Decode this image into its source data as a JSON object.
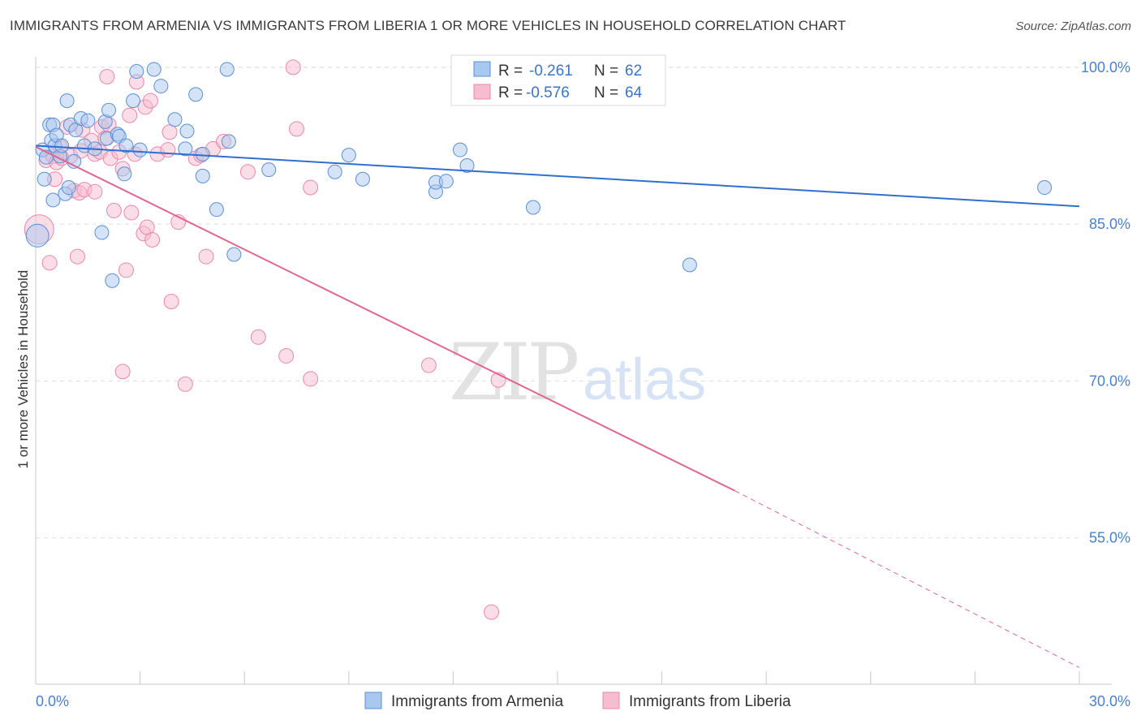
{
  "header": {
    "title": "IMMIGRANTS FROM ARMENIA VS IMMIGRANTS FROM LIBERIA 1 OR MORE VEHICLES IN HOUSEHOLD CORRELATION CHART",
    "source": "Source: ZipAtlas.com"
  },
  "watermark": {
    "zip": "ZIP",
    "atlas": "atlas"
  },
  "stats_box": {
    "rows": [
      {
        "r_label": "R =",
        "r_value": "-0.261",
        "n_label": "N =",
        "n_value": "62"
      },
      {
        "r_label": "R =",
        "r_value": "-0.576",
        "n_label": "N =",
        "n_value": "64"
      }
    ]
  },
  "legend": {
    "items": [
      {
        "label": "Immigrants from Armenia"
      },
      {
        "label": "Immigrants from Liberia"
      }
    ]
  },
  "colors": {
    "armenia_fill": "#a9c8f0",
    "armenia_stroke": "#5b8fd6",
    "armenia_line": "#2f6fcf",
    "liberia_fill": "#f6bcd0",
    "liberia_stroke": "#e889a8",
    "liberia_line": "#e06690",
    "tick_label": "#4a7fd0",
    "grid": "#dddddd"
  },
  "chart_data": {
    "type": "scatter",
    "title": "IMMIGRANTS FROM ARMENIA VS IMMIGRANTS FROM LIBERIA 1 OR MORE VEHICLES IN HOUSEHOLD CORRELATION CHART",
    "xlabel": "",
    "ylabel": "1 or more Vehicles in Household",
    "xlim": [
      0,
      30
    ],
    "ylim": [
      41,
      101
    ],
    "x_tick_labels": [
      "0.0%",
      "30.0%"
    ],
    "y_ticks": [
      55,
      70,
      85,
      100
    ],
    "y_tick_labels": [
      "55.0%",
      "70.0%",
      "85.0%",
      "100.0%"
    ],
    "grid": "horizontal dashed",
    "legend_position": "bottom-center",
    "series": [
      {
        "name": "Immigrants from Armenia",
        "R": -0.261,
        "N": 62,
        "trend": {
          "x": [
            0,
            30
          ],
          "y": [
            92.5,
            86.7
          ]
        },
        "points": [
          [
            0.05,
            83.9
          ],
          [
            0.2,
            92.1
          ],
          [
            0.25,
            89.3
          ],
          [
            0.3,
            91.4
          ],
          [
            0.4,
            94.5
          ],
          [
            0.45,
            93.0
          ],
          [
            0.5,
            87.3
          ],
          [
            0.5,
            94.5
          ],
          [
            0.55,
            92.5
          ],
          [
            0.6,
            93.5
          ],
          [
            0.7,
            91.5
          ],
          [
            0.75,
            92.5
          ],
          [
            0.85,
            87.9
          ],
          [
            0.9,
            96.8
          ],
          [
            0.95,
            88.5
          ],
          [
            1.0,
            94.5
          ],
          [
            1.1,
            91.0
          ],
          [
            1.15,
            94.0
          ],
          [
            1.3,
            95.1
          ],
          [
            1.4,
            92.5
          ],
          [
            1.5,
            94.9
          ],
          [
            1.7,
            92.2
          ],
          [
            1.9,
            84.2
          ],
          [
            2.0,
            94.8
          ],
          [
            2.05,
            93.2
          ],
          [
            2.1,
            95.9
          ],
          [
            2.2,
            79.6
          ],
          [
            2.35,
            93.6
          ],
          [
            2.4,
            93.4
          ],
          [
            2.55,
            89.8
          ],
          [
            2.6,
            92.5
          ],
          [
            2.8,
            96.8
          ],
          [
            2.9,
            99.6
          ],
          [
            3.0,
            92.1
          ],
          [
            3.4,
            99.8
          ],
          [
            3.6,
            98.2
          ],
          [
            4.0,
            95.0
          ],
          [
            4.3,
            92.2
          ],
          [
            4.35,
            93.9
          ],
          [
            4.6,
            97.4
          ],
          [
            4.8,
            91.7
          ],
          [
            4.8,
            89.6
          ],
          [
            5.2,
            86.4
          ],
          [
            5.5,
            99.8
          ],
          [
            5.55,
            92.9
          ],
          [
            5.7,
            82.1
          ],
          [
            6.7,
            90.2
          ],
          [
            8.6,
            90.0
          ],
          [
            9.0,
            91.6
          ],
          [
            9.4,
            89.3
          ],
          [
            11.5,
            88.1
          ],
          [
            11.5,
            89.0
          ],
          [
            11.8,
            89.1
          ],
          [
            12.2,
            92.1
          ],
          [
            12.4,
            90.6
          ],
          [
            14.3,
            86.6
          ],
          [
            18.8,
            81.1
          ],
          [
            29.0,
            88.5
          ]
        ]
      },
      {
        "name": "Immigrants from Liberia",
        "R": -0.576,
        "N": 64,
        "trend": {
          "x": [
            0,
            20.1
          ],
          "y": [
            92.4,
            59.5
          ],
          "dashed_extension": {
            "x": [
              20.1,
              30
            ],
            "y": [
              59.5,
              42.6
            ]
          }
        },
        "points": [
          [
            0.1,
            84.5
          ],
          [
            0.3,
            91.1
          ],
          [
            0.4,
            81.3
          ],
          [
            0.5,
            91.5
          ],
          [
            0.55,
            89.3
          ],
          [
            0.6,
            90.9
          ],
          [
            0.7,
            92.4
          ],
          [
            0.75,
            91.3
          ],
          [
            0.9,
            94.3
          ],
          [
            1.0,
            91.5
          ],
          [
            1.1,
            88.2
          ],
          [
            1.2,
            81.9
          ],
          [
            1.25,
            88.0
          ],
          [
            1.3,
            92.0
          ],
          [
            1.35,
            94.0
          ],
          [
            1.4,
            88.3
          ],
          [
            1.6,
            93.0
          ],
          [
            1.7,
            88.1
          ],
          [
            1.7,
            91.7
          ],
          [
            1.85,
            91.9
          ],
          [
            1.9,
            94.3
          ],
          [
            2.0,
            93.2
          ],
          [
            2.05,
            99.1
          ],
          [
            2.1,
            94.5
          ],
          [
            2.15,
            91.3
          ],
          [
            2.25,
            86.3
          ],
          [
            2.4,
            91.9
          ],
          [
            2.5,
            90.3
          ],
          [
            2.5,
            70.9
          ],
          [
            2.6,
            80.6
          ],
          [
            2.7,
            95.4
          ],
          [
            2.75,
            86.1
          ],
          [
            2.85,
            91.7
          ],
          [
            2.9,
            98.6
          ],
          [
            3.1,
            84.1
          ],
          [
            3.15,
            96.2
          ],
          [
            3.2,
            84.7
          ],
          [
            3.3,
            96.8
          ],
          [
            3.35,
            83.5
          ],
          [
            3.5,
            91.7
          ],
          [
            3.8,
            92.1
          ],
          [
            3.85,
            93.8
          ],
          [
            3.9,
            77.6
          ],
          [
            4.1,
            85.2
          ],
          [
            4.3,
            69.7
          ],
          [
            4.6,
            91.3
          ],
          [
            4.75,
            91.6
          ],
          [
            4.9,
            81.9
          ],
          [
            5.1,
            92.2
          ],
          [
            5.4,
            92.9
          ],
          [
            6.1,
            90.0
          ],
          [
            6.4,
            74.2
          ],
          [
            7.2,
            72.4
          ],
          [
            7.4,
            100.0
          ],
          [
            7.5,
            94.1
          ],
          [
            7.9,
            70.2
          ],
          [
            7.9,
            88.5
          ],
          [
            11.3,
            71.5
          ],
          [
            13.3,
            70.1
          ],
          [
            13.1,
            47.9
          ]
        ]
      }
    ]
  }
}
